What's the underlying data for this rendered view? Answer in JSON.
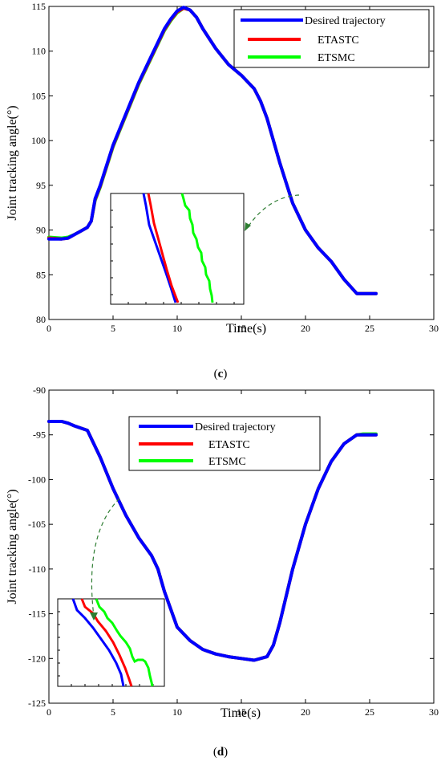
{
  "chart_data": [
    {
      "type": "line",
      "panel_label_prefix": "(",
      "panel_label": "c",
      "panel_label_suffix": ")",
      "xlabel": "Time(s)",
      "ylabel": "Joint tracking angle(°)",
      "xlim": [
        0,
        30
      ],
      "ylim": [
        80,
        115
      ],
      "xticks": [
        0,
        5,
        10,
        15,
        20,
        25,
        30
      ],
      "yticks": [
        80,
        85,
        90,
        95,
        100,
        105,
        110,
        115
      ],
      "grid": false,
      "legend_position": "top-right",
      "legend": [
        "Desired trajectory",
        "ETASTC",
        "ETSMC"
      ],
      "colors": {
        "desired": "#0000ff",
        "etastc": "#ff0000",
        "etsmc": "#00ff00"
      },
      "series": [
        {
          "name": "Desired trajectory",
          "color": "#0000ff",
          "x": [
            0,
            1,
            1.5,
            2,
            2.5,
            3,
            3.3,
            3.6,
            4,
            5,
            6,
            7,
            8,
            9,
            9.5,
            10,
            10.5,
            11,
            11.5,
            12,
            13,
            14,
            15,
            16,
            16.5,
            17,
            18,
            19,
            20,
            21,
            22,
            23,
            24,
            25.5
          ],
          "y": [
            89.0,
            89.0,
            89.1,
            89.5,
            89.9,
            90.3,
            91.0,
            93.5,
            95.0,
            99.5,
            103.0,
            106.5,
            109.5,
            112.5,
            113.6,
            114.5,
            114.9,
            114.6,
            113.8,
            112.5,
            110.3,
            108.5,
            107.3,
            105.8,
            104.4,
            102.5,
            97.5,
            93.0,
            90.0,
            88.0,
            86.5,
            84.5,
            82.9,
            82.9
          ]
        },
        {
          "name": "ETASTC",
          "color": "#ff0000",
          "x": [
            0,
            1,
            1.5,
            2,
            2.5,
            3,
            3.3,
            3.6,
            4,
            5,
            6,
            7,
            8,
            9,
            9.5,
            10,
            10.5,
            11,
            11.5,
            12,
            13,
            14,
            15,
            16,
            16.5,
            17,
            18,
            19,
            20,
            21,
            22,
            23,
            24,
            25.5
          ],
          "y": [
            89.1,
            89.0,
            89.1,
            89.5,
            89.9,
            90.3,
            91.0,
            93.4,
            94.9,
            99.4,
            102.9,
            106.4,
            109.4,
            112.4,
            113.5,
            114.4,
            114.8,
            114.6,
            113.8,
            112.5,
            110.3,
            108.5,
            107.3,
            105.8,
            104.4,
            102.5,
            97.5,
            93.0,
            90.0,
            88.0,
            86.5,
            84.5,
            82.9,
            82.9
          ]
        },
        {
          "name": "ETSMC",
          "color": "#00ff00",
          "x": [
            0,
            1,
            1.5,
            2,
            2.5,
            3,
            3.3,
            3.6,
            4,
            5,
            6,
            7,
            8,
            9,
            9.5,
            10,
            10.5,
            11,
            11.5,
            12,
            13,
            14,
            15,
            16,
            16.5,
            17,
            18,
            19,
            20,
            21,
            22,
            23,
            24,
            25.5
          ],
          "y": [
            89.2,
            89.1,
            89.2,
            89.5,
            89.9,
            90.3,
            91.0,
            93.3,
            94.8,
            99.3,
            102.8,
            106.3,
            109.3,
            112.3,
            113.4,
            114.3,
            114.8,
            114.6,
            113.8,
            112.5,
            110.3,
            108.5,
            107.3,
            105.8,
            104.4,
            102.5,
            97.5,
            93.0,
            90.0,
            88.0,
            86.5,
            84.5,
            82.9,
            82.9
          ]
        }
      ]
    },
    {
      "type": "line",
      "panel_label_prefix": "(",
      "panel_label": "d",
      "panel_label_suffix": ")",
      "xlabel": "Time(s)",
      "ylabel": "Joint tracking angle(°)",
      "xlim": [
        0,
        30
      ],
      "ylim": [
        -125,
        -90
      ],
      "xticks": [
        0,
        5,
        10,
        15,
        20,
        25,
        30
      ],
      "yticks": [
        -90,
        -95,
        -100,
        -105,
        -110,
        -115,
        -120,
        -125
      ],
      "grid": false,
      "legend_position": "top-center",
      "legend": [
        "Desired trajectory",
        "ETASTC",
        "ETSMC"
      ],
      "colors": {
        "desired": "#0000ff",
        "etastc": "#ff0000",
        "etsmc": "#00ff00"
      },
      "series": [
        {
          "name": "Desired trajectory",
          "color": "#0000ff",
          "x": [
            0,
            1,
            1.5,
            2,
            3,
            4,
            5,
            6,
            7,
            8,
            8.5,
            9,
            10,
            11,
            12,
            13,
            14,
            15,
            16,
            17,
            17.5,
            18,
            19,
            20,
            21,
            22,
            23,
            24,
            24.5,
            25.5
          ],
          "y": [
            -93.5,
            -93.5,
            -93.7,
            -94.0,
            -94.5,
            -97.5,
            -101.0,
            -104.0,
            -106.5,
            -108.5,
            -110.0,
            -112.5,
            -116.5,
            -118.0,
            -119.0,
            -119.5,
            -119.8,
            -120.0,
            -120.2,
            -119.8,
            -118.5,
            -116.0,
            -110.0,
            -105.0,
            -101.0,
            -98.0,
            -96.0,
            -95.0,
            -95.0,
            -95.0
          ]
        },
        {
          "name": "ETASTC",
          "color": "#ff0000",
          "x": [
            0,
            1,
            1.5,
            2,
            3,
            4,
            5,
            6,
            7,
            8,
            8.5,
            9,
            10,
            11,
            12,
            13,
            14,
            15,
            16,
            17,
            17.5,
            18,
            19,
            20,
            21,
            22,
            23,
            24,
            24.5,
            25.5
          ],
          "y": [
            -93.5,
            -93.5,
            -93.7,
            -94.0,
            -94.5,
            -97.5,
            -101.0,
            -104.0,
            -106.5,
            -108.5,
            -110.0,
            -112.5,
            -116.5,
            -118.0,
            -119.0,
            -119.5,
            -119.8,
            -120.0,
            -120.2,
            -119.8,
            -118.5,
            -116.0,
            -110.0,
            -105.0,
            -101.0,
            -98.0,
            -96.0,
            -95.0,
            -95.0,
            -95.0
          ]
        },
        {
          "name": "ETSMC",
          "color": "#00ff00",
          "x": [
            0,
            1,
            1.5,
            2,
            3,
            4,
            5,
            6,
            7,
            8,
            8.5,
            9,
            10,
            11,
            12,
            13,
            14,
            15,
            16,
            17,
            17.5,
            18,
            19,
            20,
            21,
            22,
            23,
            24,
            24.5,
            25.5
          ],
          "y": [
            -93.5,
            -93.5,
            -93.7,
            -94.0,
            -94.5,
            -97.5,
            -101.0,
            -104.0,
            -106.5,
            -108.5,
            -110.0,
            -112.5,
            -116.5,
            -118.0,
            -119.0,
            -119.5,
            -119.8,
            -120.0,
            -120.2,
            -119.8,
            -118.5,
            -116.0,
            -110.0,
            -105.0,
            -101.0,
            -98.0,
            -96.0,
            -95.0,
            -94.9,
            -94.9
          ]
        }
      ]
    }
  ]
}
